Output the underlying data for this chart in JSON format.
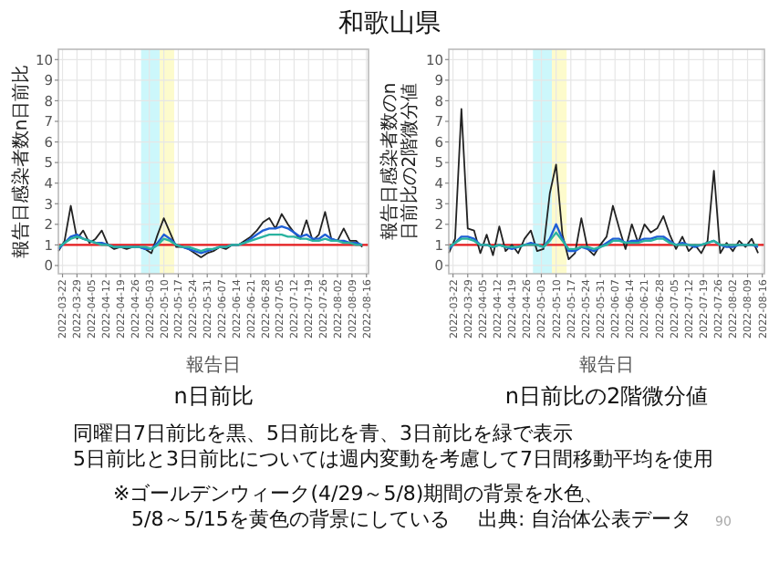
{
  "chart_data": [
    {
      "type": "line",
      "title": "和歌山県",
      "subtitle": "n日前比",
      "xlabel": "報告日",
      "ylabel": "報告日感染者数n日前比",
      "x": [
        "2022-03-20",
        "2022-03-23",
        "2022-03-26",
        "2022-03-29",
        "2022-04-01",
        "2022-04-04",
        "2022-04-07",
        "2022-04-10",
        "2022-04-13",
        "2022-04-16",
        "2022-04-19",
        "2022-04-22",
        "2022-04-25",
        "2022-04-28",
        "2022-05-01",
        "2022-05-04",
        "2022-05-07",
        "2022-05-10",
        "2022-05-13",
        "2022-05-16",
        "2022-05-19",
        "2022-05-22",
        "2022-05-25",
        "2022-05-28",
        "2022-05-31",
        "2022-06-03",
        "2022-06-06",
        "2022-06-09",
        "2022-06-12",
        "2022-06-15",
        "2022-06-18",
        "2022-06-21",
        "2022-06-24",
        "2022-06-27",
        "2022-06-30",
        "2022-07-03",
        "2022-07-06",
        "2022-07-09",
        "2022-07-12",
        "2022-07-15",
        "2022-07-18",
        "2022-07-21",
        "2022-07-24",
        "2022-07-27",
        "2022-07-30",
        "2022-08-02",
        "2022-08-05",
        "2022-08-08",
        "2022-08-11",
        "2022-08-14"
      ],
      "series": [
        {
          "color": "#222222",
          "values": [
            0.7,
            1.2,
            2.9,
            1.3,
            1.7,
            1.1,
            1.3,
            1.7,
            1.0,
            0.8,
            0.9,
            0.8,
            0.9,
            0.9,
            0.8,
            0.6,
            1.5,
            2.3,
            1.6,
            0.9,
            0.9,
            0.8,
            0.6,
            0.4,
            0.6,
            0.7,
            0.9,
            0.8,
            1.0,
            1.0,
            1.2,
            1.4,
            1.7,
            2.1,
            2.3,
            1.8,
            2.5,
            2.0,
            1.6,
            1.3,
            2.2,
            1.2,
            1.5,
            2.6,
            1.3,
            1.2,
            1.8,
            1.2,
            1.2,
            0.9
          ]
        },
        {
          "color": "#1f5fd6",
          "values": [
            0.8,
            1.1,
            1.4,
            1.5,
            1.3,
            1.2,
            1.1,
            1.1,
            1.0,
            0.9,
            0.9,
            0.9,
            0.9,
            0.9,
            0.8,
            0.8,
            1.1,
            1.5,
            1.3,
            1.0,
            0.9,
            0.8,
            0.7,
            0.6,
            0.7,
            0.8,
            0.9,
            0.9,
            1.0,
            1.0,
            1.1,
            1.3,
            1.5,
            1.7,
            1.8,
            1.8,
            1.9,
            1.8,
            1.6,
            1.4,
            1.5,
            1.3,
            1.3,
            1.5,
            1.3,
            1.2,
            1.2,
            1.1,
            1.1,
            1.0
          ]
        },
        {
          "color": "#2ab3a0",
          "values": [
            0.9,
            1.1,
            1.3,
            1.4,
            1.3,
            1.2,
            1.1,
            1.0,
            1.0,
            0.9,
            0.9,
            0.9,
            0.9,
            0.9,
            0.9,
            0.8,
            1.0,
            1.3,
            1.2,
            1.0,
            0.9,
            0.9,
            0.8,
            0.7,
            0.8,
            0.8,
            0.9,
            0.9,
            1.0,
            1.0,
            1.1,
            1.2,
            1.3,
            1.4,
            1.5,
            1.5,
            1.5,
            1.4,
            1.4,
            1.3,
            1.3,
            1.2,
            1.2,
            1.3,
            1.2,
            1.2,
            1.1,
            1.1,
            1.0,
            1.0
          ]
        }
      ],
      "xlim": [
        "2022-03-20",
        "2022-08-17"
      ],
      "xticks": [
        "2022-03-22",
        "2022-03-29",
        "2022-04-05",
        "2022-04-12",
        "2022-04-19",
        "2022-04-26",
        "2022-05-03",
        "2022-05-10",
        "2022-05-17",
        "2022-05-24",
        "2022-05-31",
        "2022-06-07",
        "2022-06-14",
        "2022-06-21",
        "2022-06-28",
        "2022-07-05",
        "2022-07-12",
        "2022-07-19",
        "2022-07-26",
        "2022-08-02",
        "2022-08-09",
        "2022-08-16"
      ],
      "ylim": [
        -0.4,
        10.5
      ],
      "yticks": [
        0,
        1,
        2,
        3,
        4,
        5,
        6,
        7,
        8,
        9,
        10
      ],
      "grid": true,
      "ref_lines": [
        {
          "axis": "y",
          "value": 1,
          "color": "#e41a1c"
        }
      ],
      "bands": [
        {
          "axis": "x",
          "from": "2022-04-29",
          "to": "2022-05-08",
          "color": "#ccf7fb"
        },
        {
          "axis": "x",
          "from": "2022-05-08",
          "to": "2022-05-15",
          "color": "#fdfbcc"
        }
      ],
      "annotations": [
        "同曜日7日前比を黒、5日前比を青、3日前比を緑で表示",
        "5日前比と3日前比については週内変動を考慮して7日間移動平均を使用",
        "※ゴールデンウィーク(4/29～5/8)期間の背景を水色、",
        "5/8～5/15を黄色の背景にしている",
        "出典: 自治体公表データ",
        "90"
      ]
    },
    {
      "type": "line",
      "subtitle": "n日前比の2階微分値",
      "xlabel": "報告日",
      "ylabel": "報告日感染者数のn日前比の2階微分値",
      "x": [
        "2022-03-20",
        "2022-03-23",
        "2022-03-26",
        "2022-03-29",
        "2022-04-01",
        "2022-04-04",
        "2022-04-07",
        "2022-04-10",
        "2022-04-13",
        "2022-04-16",
        "2022-04-19",
        "2022-04-22",
        "2022-04-25",
        "2022-04-28",
        "2022-05-01",
        "2022-05-04",
        "2022-05-07",
        "2022-05-10",
        "2022-05-13",
        "2022-05-16",
        "2022-05-19",
        "2022-05-22",
        "2022-05-25",
        "2022-05-28",
        "2022-05-31",
        "2022-06-03",
        "2022-06-06",
        "2022-06-09",
        "2022-06-12",
        "2022-06-15",
        "2022-06-18",
        "2022-06-21",
        "2022-06-24",
        "2022-06-27",
        "2022-06-30",
        "2022-07-03",
        "2022-07-06",
        "2022-07-09",
        "2022-07-12",
        "2022-07-15",
        "2022-07-18",
        "2022-07-21",
        "2022-07-24",
        "2022-07-27",
        "2022-07-30",
        "2022-08-02",
        "2022-08-05",
        "2022-08-08",
        "2022-08-11",
        "2022-08-14"
      ],
      "series": [
        {
          "color": "#222222",
          "values": [
            0.6,
            1.3,
            7.6,
            1.8,
            1.7,
            0.6,
            1.5,
            0.5,
            1.9,
            0.7,
            1.0,
            0.6,
            1.3,
            1.7,
            0.7,
            0.8,
            3.5,
            4.9,
            1.5,
            0.3,
            0.6,
            2.3,
            0.8,
            0.5,
            1.0,
            1.4,
            2.9,
            1.8,
            0.8,
            2.0,
            1.1,
            2.0,
            1.6,
            1.8,
            2.4,
            1.5,
            0.8,
            1.4,
            0.7,
            1.0,
            0.6,
            1.2,
            4.6,
            0.6,
            1.1,
            0.7,
            1.2,
            0.9,
            1.3,
            0.6
          ]
        },
        {
          "color": "#1f5fd6",
          "values": [
            0.8,
            1.1,
            1.4,
            1.4,
            1.3,
            1.0,
            1.0,
            0.9,
            1.0,
            0.9,
            0.8,
            0.9,
            1.0,
            1.1,
            1.0,
            0.9,
            1.3,
            2.0,
            1.3,
            0.7,
            0.7,
            0.9,
            0.8,
            0.7,
            0.9,
            1.1,
            1.3,
            1.3,
            1.1,
            1.2,
            1.2,
            1.3,
            1.3,
            1.4,
            1.4,
            1.2,
            1.0,
            1.1,
            1.0,
            0.9,
            1.0,
            1.1,
            1.2,
            1.0,
            0.9,
            0.9,
            1.0,
            1.0,
            1.0,
            0.9
          ]
        },
        {
          "color": "#2ab3a0",
          "values": [
            0.9,
            1.1,
            1.3,
            1.3,
            1.2,
            1.0,
            1.0,
            0.9,
            1.0,
            0.9,
            0.9,
            0.9,
            1.0,
            1.0,
            1.0,
            0.9,
            1.2,
            1.6,
            1.2,
            0.8,
            0.8,
            0.9,
            0.9,
            0.8,
            0.9,
            1.0,
            1.2,
            1.2,
            1.1,
            1.1,
            1.1,
            1.2,
            1.2,
            1.3,
            1.3,
            1.1,
            1.0,
            1.0,
            1.0,
            1.0,
            1.0,
            1.1,
            1.2,
            1.0,
            1.0,
            1.0,
            1.0,
            1.0,
            1.0,
            1.0
          ]
        }
      ],
      "xlim": [
        "2022-03-20",
        "2022-08-17"
      ],
      "xticks": [
        "2022-03-22",
        "2022-03-29",
        "2022-04-05",
        "2022-04-12",
        "2022-04-19",
        "2022-04-26",
        "2022-05-03",
        "2022-05-10",
        "2022-05-17",
        "2022-05-24",
        "2022-05-31",
        "2022-06-07",
        "2022-06-14",
        "2022-06-21",
        "2022-06-28",
        "2022-07-05",
        "2022-07-12",
        "2022-07-19",
        "2022-07-26",
        "2022-08-02",
        "2022-08-09",
        "2022-08-16"
      ],
      "ylim": [
        -0.4,
        10.5
      ],
      "yticks": [
        0,
        1,
        2,
        3,
        4,
        5,
        6,
        7,
        8,
        9,
        10
      ],
      "grid": true,
      "ref_lines": [
        {
          "axis": "y",
          "value": 1,
          "color": "#e41a1c"
        }
      ],
      "bands": [
        {
          "axis": "x",
          "from": "2022-04-29",
          "to": "2022-05-08",
          "color": "#ccf7fb"
        },
        {
          "axis": "x",
          "from": "2022-05-08",
          "to": "2022-05-15",
          "color": "#fdfbcc"
        }
      ]
    }
  ]
}
